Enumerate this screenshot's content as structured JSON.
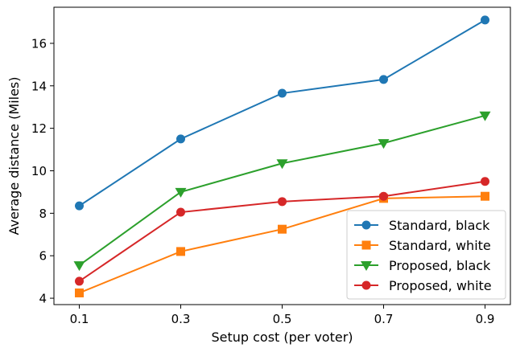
{
  "chart_data": {
    "type": "line",
    "title": "",
    "xlabel": "Setup cost (per voter)",
    "ylabel": "Average distance (Miles)",
    "x": [
      0.1,
      0.3,
      0.5,
      0.7,
      0.9
    ],
    "x_tick_labels": [
      "0.1",
      "0.3",
      "0.5",
      "0.7",
      "0.9"
    ],
    "y_ticks": [
      4,
      6,
      8,
      10,
      12,
      14,
      16
    ],
    "xlim": [
      0.05,
      0.95
    ],
    "ylim": [
      3.7,
      17.7
    ],
    "grid": false,
    "legend_position": "lower-right",
    "series": [
      {
        "name": "Standard, black",
        "color": "#1f77b4",
        "marker": "circle",
        "values": [
          8.35,
          11.5,
          13.65,
          14.3,
          17.1
        ]
      },
      {
        "name": "Standard, white",
        "color": "#ff7f0e",
        "marker": "square",
        "values": [
          4.25,
          6.2,
          7.25,
          8.7,
          8.8
        ]
      },
      {
        "name": "Proposed, black",
        "color": "#2ca02c",
        "marker": "triangle-down",
        "values": [
          5.55,
          9.0,
          10.35,
          11.3,
          12.6
        ]
      },
      {
        "name": "Proposed, white",
        "color": "#d62728",
        "marker": "circle",
        "values": [
          4.8,
          8.05,
          8.55,
          8.8,
          9.5
        ]
      }
    ]
  }
}
